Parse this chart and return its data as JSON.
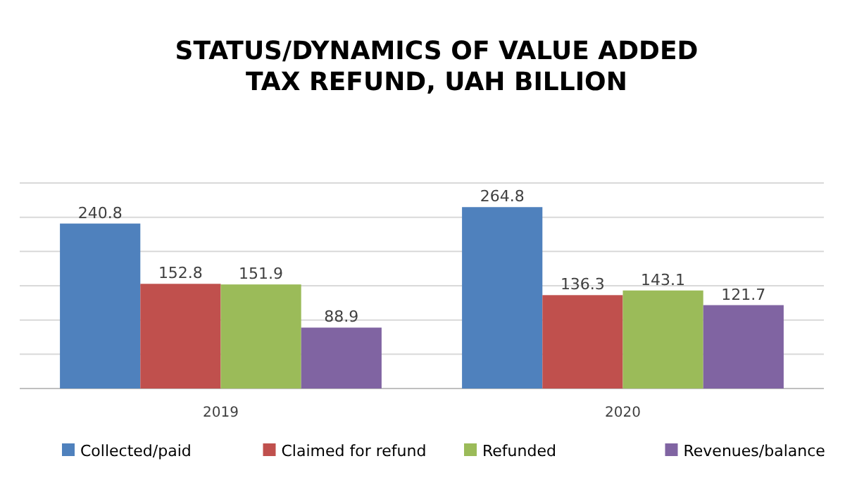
{
  "chart_data": {
    "type": "bar",
    "title": "STATUS/DYNAMICS OF VALUE ADDED TAX REFUND, UAH BILLION",
    "categories": [
      "2019",
      "2020"
    ],
    "series": [
      {
        "name": "Collected/paid",
        "color": "#4f81bd",
        "values": [
          240.8,
          264.8
        ]
      },
      {
        "name": "Claimed for refund",
        "color": "#c0504d",
        "values": [
          152.8,
          136.3
        ]
      },
      {
        "name": "Refunded",
        "color": "#9bbb59",
        "values": [
          151.9,
          143.1
        ]
      },
      {
        "name": "Revenues/balance",
        "color": "#8064a2",
        "values": [
          88.9,
          121.7
        ]
      }
    ],
    "ylim": [
      0,
      300
    ],
    "yticks": [
      {
        "value": 0,
        "label": null
      },
      {
        "value": 50,
        "label": null
      },
      {
        "value": 100,
        "label": null
      },
      {
        "value": 150,
        "label": null
      },
      {
        "value": 200,
        "label": null
      },
      {
        "value": 250,
        "label": null
      },
      {
        "value": 300,
        "label": null
      }
    ],
    "tick_labels": "x",
    "grid": "y",
    "data_labels": true,
    "legend": "bottom"
  }
}
